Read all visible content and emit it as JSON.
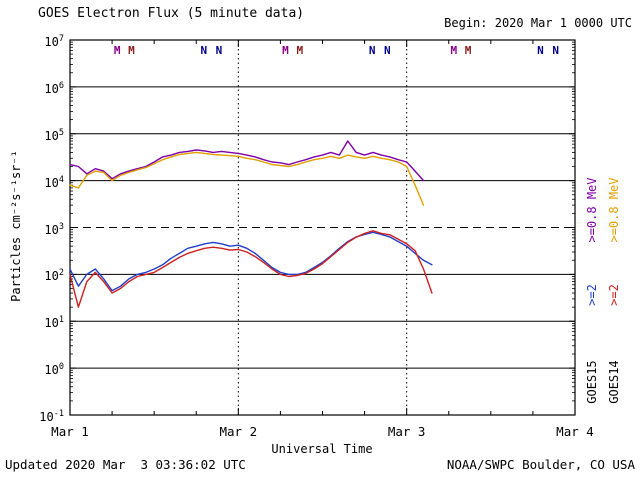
{
  "header": {
    "title": "GOES Electron Flux (5 minute data)",
    "begin": "Begin: 2020 Mar 1 0000 UTC"
  },
  "footer": {
    "updated": "Updated 2020 Mar  3 03:36:02 UTC",
    "credit": "NOAA/SWPC Boulder, CO USA"
  },
  "axes": {
    "ylabel": "Particles cm⁻²s⁻¹sr⁻¹",
    "xlabel": "Universal Time"
  },
  "legend": {
    "goes15": {
      "e08": ">=0.8 MeV",
      "e2": ">=2",
      "name": "GOES15"
    },
    "goes14": {
      "e08": ">=0.8 MeV",
      "e2": ">=2",
      "name": "GOES14"
    }
  },
  "chart_data": {
    "type": "line",
    "title": "GOES Electron Flux (5 minute data)",
    "xlabel": "Universal Time",
    "ylabel": "Particles cm^-2 s^-1 sr^-1",
    "x_unit": "days since 2020 Mar 1 0000 UTC",
    "x_range": [
      0,
      3
    ],
    "y_scale": "log10",
    "y_range": [
      0.1,
      10000000
    ],
    "x_ticks": [
      "Mar 1",
      "Mar 2",
      "Mar 3",
      "Mar 4"
    ],
    "y_tick_exponents": [
      7,
      6,
      5,
      4,
      3,
      2,
      1,
      0,
      -1
    ],
    "grid": "decade horizontal solid, dashed threshold at 1e3, dotted day boundaries",
    "threshold_flux": 1000,
    "day_gridlines": [
      1,
      2
    ],
    "legend_position": "right margin, rotated",
    "x": [
      0,
      0.05,
      0.1,
      0.15,
      0.2,
      0.25,
      0.3,
      0.35,
      0.4,
      0.45,
      0.5,
      0.55,
      0.6,
      0.65,
      0.7,
      0.75,
      0.8,
      0.85,
      0.9,
      0.95,
      1,
      1.05,
      1.1,
      1.15,
      1.2,
      1.25,
      1.3,
      1.35,
      1.4,
      1.45,
      1.5,
      1.55,
      1.6,
      1.65,
      1.7,
      1.75,
      1.8,
      1.85,
      1.9,
      1.95,
      2,
      2.05,
      2.1,
      2.15
    ],
    "series": [
      {
        "name": "GOES15 >=0.8 MeV",
        "color": "#8000A8",
        "values": [
          22000,
          20000,
          14000,
          18000,
          16000,
          11000,
          14000,
          16000,
          18000,
          20000,
          25000,
          32000,
          35000,
          40000,
          42000,
          45000,
          43000,
          40000,
          42000,
          40000,
          38000,
          35000,
          32000,
          28000,
          25000,
          24000,
          22000,
          25000,
          28000,
          32000,
          35000,
          40000,
          35000,
          70000,
          40000,
          35000,
          40000,
          35000,
          32000,
          28000,
          25000,
          16000,
          10000,
          null
        ]
      },
      {
        "name": "GOES14 >=0.8 MeV",
        "color": "#E0A000",
        "values": [
          8000,
          7000,
          13000,
          16000,
          15000,
          10000,
          13000,
          15000,
          17000,
          19000,
          23000,
          28000,
          32000,
          36000,
          38000,
          40000,
          38000,
          36000,
          35000,
          34000,
          33000,
          30000,
          28000,
          25000,
          22000,
          21000,
          20000,
          22000,
          25000,
          28000,
          30000,
          33000,
          30000,
          35000,
          32000,
          30000,
          33000,
          30000,
          28000,
          25000,
          20000,
          8000,
          3000,
          null
        ]
      },
      {
        "name": "GOES15 >=2 MeV",
        "color": "#2040CC",
        "values": [
          130,
          56,
          100,
          130,
          80,
          45,
          56,
          80,
          100,
          110,
          130,
          160,
          220,
          280,
          360,
          400,
          450,
          480,
          450,
          400,
          420,
          360,
          280,
          200,
          140,
          110,
          100,
          100,
          110,
          140,
          180,
          250,
          360,
          500,
          630,
          710,
          790,
          710,
          630,
          500,
          400,
          280,
          200,
          160
        ]
      },
      {
        "name": "GOES14 >=2 MeV",
        "color": "#D02020",
        "values": [
          100,
          20,
          70,
          110,
          70,
          40,
          50,
          70,
          90,
          100,
          110,
          140,
          180,
          230,
          280,
          320,
          360,
          380,
          360,
          330,
          340,
          300,
          240,
          180,
          130,
          100,
          90,
          95,
          105,
          130,
          170,
          240,
          340,
          480,
          620,
          750,
          850,
          750,
          700,
          560,
          450,
          320,
          130,
          40
        ]
      }
    ],
    "markers": {
      "M": {
        "positions": [
          0.28,
          0.365,
          1.28,
          1.365,
          2.28,
          2.365
        ],
        "colors": [
          "#8B008B",
          "#8B1A1A"
        ]
      },
      "N": {
        "positions": [
          0.795,
          0.885,
          1.795,
          1.885,
          2.795,
          2.885
        ],
        "colors": [
          "#00008B",
          "#00008B"
        ]
      }
    }
  }
}
